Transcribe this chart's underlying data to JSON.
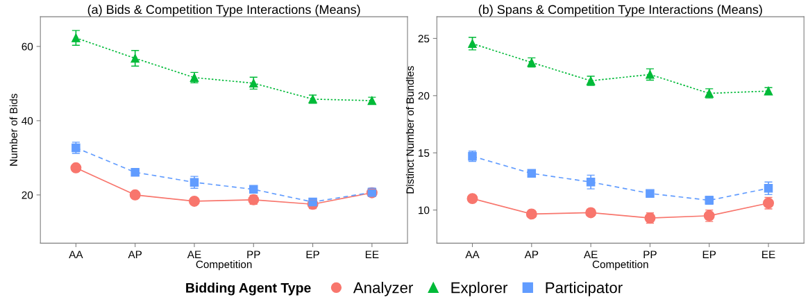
{
  "chart_data": [
    {
      "type": "line",
      "title": "(a) Bids & Competition Type Interactions (Means)",
      "xlabel": "Competition",
      "ylabel": "Number of Bids",
      "categories": [
        "AA",
        "AP",
        "AE",
        "PP",
        "EP",
        "EE"
      ],
      "ylim": [
        7,
        68
      ],
      "yticks": [
        20,
        40,
        60
      ],
      "grid": false,
      "legend": "bottom",
      "legend_title": "Bidding Agent Type",
      "series": [
        {
          "name": "Analyzer",
          "color": "#f8766d",
          "marker": "circle",
          "line_style": "solid",
          "values": [
            27.3,
            20.0,
            18.3,
            18.7,
            17.5,
            20.6
          ],
          "errors": [
            0.6,
            0.7,
            0.5,
            1.2,
            1.2,
            1.0
          ]
        },
        {
          "name": "Explorer",
          "color": "#00ba38",
          "marker": "triangle",
          "line_style": "dotted",
          "values": [
            62.3,
            56.8,
            51.6,
            50.1,
            45.8,
            45.4
          ],
          "errors": [
            2.0,
            2.1,
            1.4,
            1.6,
            1.1,
            0.9
          ]
        },
        {
          "name": "Participator",
          "color": "#619cff",
          "marker": "square",
          "line_style": "dashed",
          "values": [
            32.7,
            26.1,
            23.4,
            21.5,
            18.1,
            20.7
          ],
          "errors": [
            1.5,
            0.6,
            1.6,
            0.5,
            0.6,
            1.1
          ]
        }
      ]
    },
    {
      "type": "line",
      "title": "(b) Spans & Competition Type Interactions (Means)",
      "xlabel": "Competition",
      "ylabel": "Distinct Number of Bundles",
      "categories": [
        "AA",
        "AP",
        "AE",
        "PP",
        "EP",
        "EE"
      ],
      "ylim": [
        7.1,
        26.9
      ],
      "yticks": [
        10,
        15,
        20,
        25
      ],
      "grid": false,
      "series": [
        {
          "name": "Analyzer",
          "color": "#f8766d",
          "marker": "circle",
          "line_style": "solid",
          "values": [
            11.0,
            9.65,
            9.77,
            9.3,
            9.5,
            10.6
          ],
          "errors": [
            0.2,
            0.3,
            0.3,
            0.45,
            0.5,
            0.5
          ]
        },
        {
          "name": "Explorer",
          "color": "#00ba38",
          "marker": "triangle",
          "line_style": "dotted",
          "values": [
            24.55,
            22.9,
            21.3,
            21.85,
            20.2,
            20.4
          ],
          "errors": [
            0.55,
            0.4,
            0.4,
            0.5,
            0.4,
            0.3
          ]
        },
        {
          "name": "Participator",
          "color": "#619cff",
          "marker": "square",
          "line_style": "dashed",
          "values": [
            14.7,
            13.2,
            12.45,
            11.45,
            10.85,
            11.9
          ],
          "errors": [
            0.45,
            0.3,
            0.6,
            0.2,
            0.35,
            0.55
          ]
        }
      ]
    }
  ]
}
